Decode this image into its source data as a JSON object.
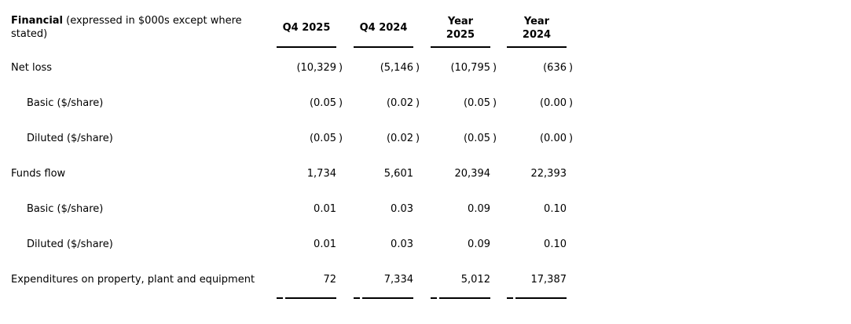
{
  "table": {
    "title": {
      "bold": "Financial",
      "rest_line1": " (expressed in $000s except where",
      "rest_line2": "stated)"
    },
    "columns": [
      {
        "label": "Q4 2025"
      },
      {
        "label": "Q4 2024"
      },
      {
        "label": "Year\n2025"
      },
      {
        "label": "Year\n2024"
      }
    ],
    "rows": [
      {
        "label": "Net loss",
        "values": [
          {
            "num": "(10,329",
            "close": ")"
          },
          {
            "num": "(5,146",
            "close": ")"
          },
          {
            "num": "(10,795",
            "close": ")"
          },
          {
            "num": "(636",
            "close": ")"
          }
        ]
      },
      {
        "label": "Basic ($/share)",
        "values": [
          {
            "num": "(0.05",
            "close": ")"
          },
          {
            "num": "(0.02",
            "close": ")"
          },
          {
            "num": "(0.05",
            "close": ")"
          },
          {
            "num": "(0.00",
            "close": ")"
          }
        ]
      },
      {
        "label": "Diluted ($/share)",
        "values": [
          {
            "num": "(0.05",
            "close": ")"
          },
          {
            "num": "(0.02",
            "close": ")"
          },
          {
            "num": "(0.05",
            "close": ")"
          },
          {
            "num": "(0.00",
            "close": ")"
          }
        ]
      },
      {
        "label": "Funds flow",
        "values": [
          {
            "num": "1,734",
            "close": ""
          },
          {
            "num": "5,601",
            "close": ""
          },
          {
            "num": "20,394",
            "close": ""
          },
          {
            "num": "22,393",
            "close": ""
          }
        ]
      },
      {
        "label": "Basic ($/share)",
        "values": [
          {
            "num": "0.01",
            "close": ""
          },
          {
            "num": "0.03",
            "close": ""
          },
          {
            "num": "0.09",
            "close": ""
          },
          {
            "num": "0.10",
            "close": ""
          }
        ]
      },
      {
        "label": "Diluted ($/share)",
        "values": [
          {
            "num": "0.01",
            "close": ""
          },
          {
            "num": "0.03",
            "close": ""
          },
          {
            "num": "0.09",
            "close": ""
          },
          {
            "num": "0.10",
            "close": ""
          }
        ]
      },
      {
        "label": "Expenditures on property, plant and equipment",
        "values": [
          {
            "num": "72",
            "close": ""
          },
          {
            "num": "7,334",
            "close": ""
          },
          {
            "num": "5,012",
            "close": ""
          },
          {
            "num": "17,387",
            "close": ""
          }
        ]
      }
    ],
    "colors": {
      "text": "#000000",
      "rule": "#000000",
      "background": "#ffffff"
    }
  }
}
